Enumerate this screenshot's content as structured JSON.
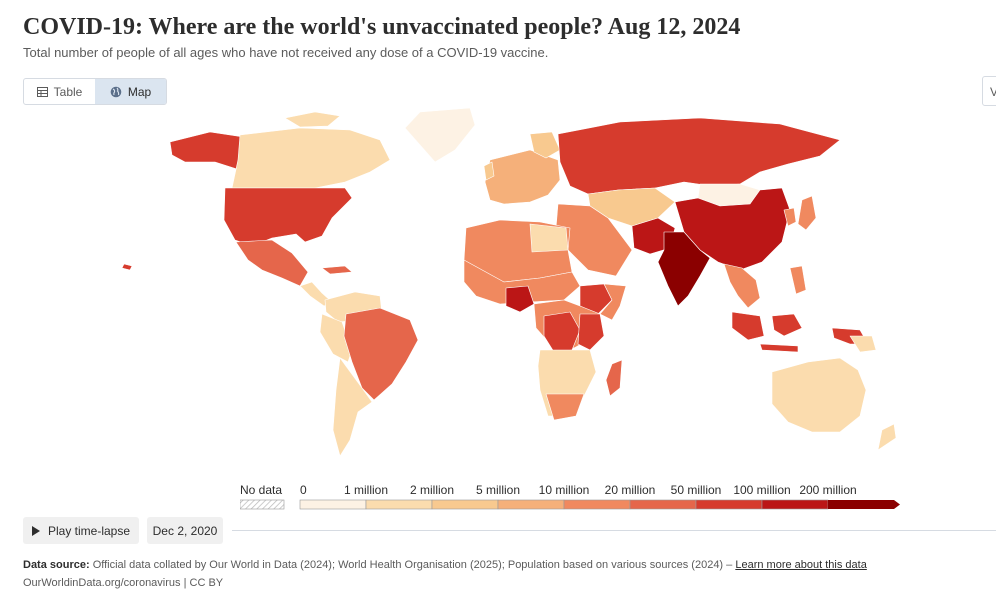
{
  "header": {
    "title": "COVID-19: Where are the world's unvaccinated people? Aug 12, 2024",
    "subtitle": "Total number of people of all ages who have not received any dose of a COVID-19 vaccine."
  },
  "tabs": [
    {
      "label": "Table",
      "icon": "table-icon",
      "active": false
    },
    {
      "label": "Map",
      "icon": "globe-icon",
      "active": true
    }
  ],
  "edge_button_label": "V",
  "legend": {
    "no_data_label": "No data",
    "bins": [
      "0",
      "1 million",
      "2 million",
      "5 million",
      "10 million",
      "20 million",
      "50 million",
      "100 million",
      "200 million"
    ],
    "colors": [
      "#fdf2e4",
      "#fbdcae",
      "#f8c98f",
      "#f5b07a",
      "#f0895f",
      "#e5664b",
      "#d63b2d",
      "#bb1616",
      "#8b0000"
    ]
  },
  "map_colors": {
    "north_america": "#fbdcae",
    "usa": "#d63b2d",
    "mexico": "#e5664b",
    "south_america": "#fbdcae",
    "brazil": "#e5664b",
    "greenland": "#fdf2e4",
    "europe": "#f5b07a",
    "russia": "#d63b2d",
    "africa": "#f0895f",
    "nigeria": "#bb1616",
    "congo": "#d63b2d",
    "ethiopia": "#d63b2d",
    "middle_east": "#f0895f",
    "central_asia": "#f8c98f",
    "mongolia": "#fdf2e4",
    "china": "#bb1616",
    "india": "#8b0000",
    "pakistan": "#bb1616",
    "southeast_asia": "#f0895f",
    "indonesia": "#d63b2d",
    "japan": "#f0895f",
    "australia": "#fbdcae",
    "madagascar": "#e5664b",
    "border": "#ffffff"
  },
  "controls": {
    "play_label": "Play time-lapse",
    "start_date": "Dec 2, 2020"
  },
  "source": {
    "label": "Data source:",
    "text": "Official data collated by Our World in Data (2024); World Health Organisation (2025); Population based on various sources (2024) –",
    "link": "Learn more about this data"
  },
  "footer": "OurWorldinData.org/coronavirus | CC BY"
}
